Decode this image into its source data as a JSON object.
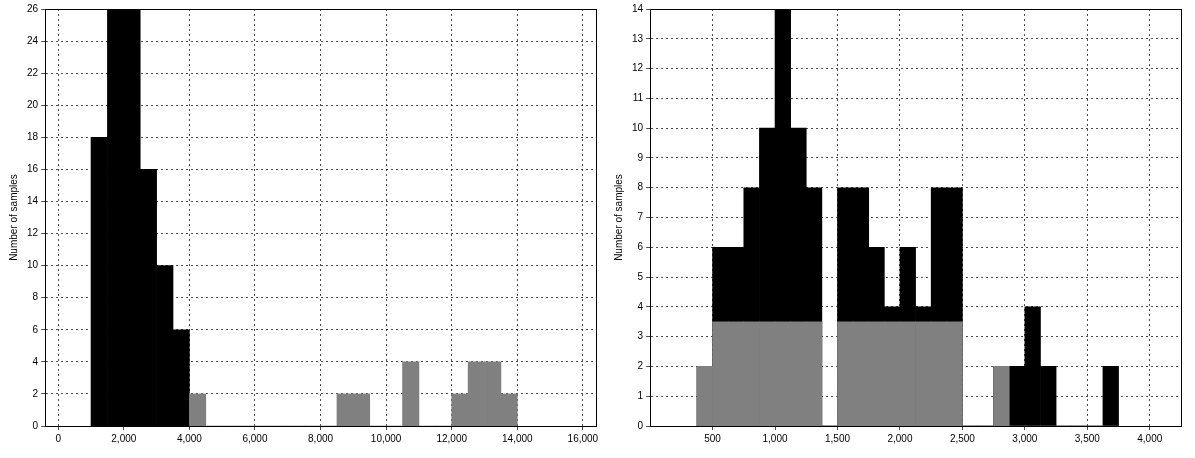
{
  "chart_data": [
    {
      "type": "histogram",
      "ylabel": "Number of samples",
      "bins": [
        1000,
        1500,
        2000,
        2500,
        3000,
        3500,
        4000,
        4500,
        5000,
        5500,
        6000,
        6500,
        7000,
        7500,
        8000,
        8500,
        9000,
        9500,
        10000,
        10500,
        11000,
        11500,
        12000,
        12500,
        13000,
        13500,
        14000
      ],
      "values": [
        18,
        26,
        26,
        16,
        10,
        6,
        2,
        0,
        0,
        0,
        0,
        0,
        0,
        0,
        0,
        2,
        2,
        0,
        0,
        4,
        0,
        0,
        2,
        4,
        4,
        2
      ],
      "colors": [
        "#000000",
        "#000000",
        "#000000",
        "#000000",
        "#000000",
        "#000000",
        "#808080",
        "#808080",
        "#808080",
        "#808080",
        "#808080",
        "#808080",
        "#808080",
        "#808080",
        "#808080",
        "#808080",
        "#808080",
        "#808080",
        "#808080",
        "#808080",
        "#808080",
        "#808080",
        "#808080",
        "#808080",
        "#808080",
        "#808080"
      ],
      "xlim": [
        -400,
        16400
      ],
      "xticks": [
        0,
        {
          "value": 2000,
          "label": "2,000"
        },
        {
          "value": 4000,
          "label": "4,000"
        },
        {
          "value": 6000,
          "label": "6,000"
        },
        {
          "value": 8000,
          "label": "8,000"
        },
        {
          "value": 10000,
          "label": "10,000"
        },
        {
          "value": 12000,
          "label": "12,000"
        },
        {
          "value": 14000,
          "label": "14,000"
        },
        {
          "value": 16000,
          "label": "16,000"
        }
      ],
      "ylim": [
        0,
        26
      ],
      "yticks": [
        0,
        2,
        4,
        6,
        8,
        10,
        12,
        14,
        16,
        18,
        20,
        22,
        24,
        26
      ],
      "grid": true
    },
    {
      "type": "histogram",
      "ylabel": "Number of samples",
      "bins": [
        375,
        500,
        625,
        750,
        875,
        1000,
        1125,
        1250,
        1375,
        1500,
        1625,
        1750,
        1875,
        2000,
        2125,
        2250,
        2375,
        2500,
        2625,
        2750,
        2875,
        3000,
        3125,
        3250,
        3375,
        3500,
        3625,
        3750
      ],
      "series": [
        {
          "color": "#000000",
          "values": [
            2,
            6,
            6,
            8,
            10,
            14,
            10,
            8,
            0,
            8,
            8,
            6,
            4,
            6,
            4,
            8,
            8,
            0,
            0,
            2,
            2,
            4,
            2,
            0,
            0,
            0,
            2
          ]
        },
        {
          "color": "#808080",
          "values": [
            2,
            3.5,
            3.5,
            3.5,
            3.5,
            3.5,
            3.5,
            3.5,
            0,
            3.5,
            3.5,
            3.5,
            3.5,
            3.5,
            3.5,
            3.5,
            3.5,
            0,
            0,
            2,
            0,
            0,
            0,
            0,
            0,
            0,
            0
          ]
        }
      ],
      "xlim": [
        0,
        4250
      ],
      "xticks": [
        500,
        {
          "value": 1000,
          "label": "1,000"
        },
        {
          "value": 1500,
          "label": "1,500"
        },
        {
          "value": 2000,
          "label": "2,000"
        },
        {
          "value": 2500,
          "label": "2,500"
        },
        {
          "value": 3000,
          "label": "3,000"
        },
        {
          "value": 3500,
          "label": "3,500"
        },
        {
          "value": 4000,
          "label": "4,000"
        }
      ],
      "ylim": [
        0,
        14
      ],
      "yticks": [
        0,
        1,
        2,
        3,
        4,
        5,
        6,
        7,
        8,
        9,
        10,
        11,
        12,
        13,
        14
      ],
      "grid": true
    }
  ]
}
